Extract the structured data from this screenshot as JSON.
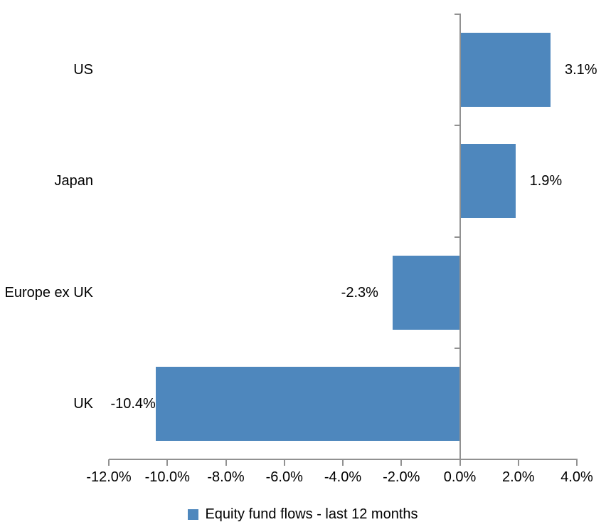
{
  "chart_data": {
    "type": "bar",
    "orientation": "horizontal",
    "title": "",
    "categories": [
      "US",
      "Japan",
      "Europe ex UK",
      "UK"
    ],
    "series": [
      {
        "name": "Equity fund flows - last 12 months",
        "values": [
          3.1,
          1.9,
          -2.3,
          -10.4
        ]
      }
    ],
    "data_labels": [
      "3.1%",
      "1.9%",
      "-2.3%",
      "-10.4%"
    ],
    "x_axis": {
      "min": -12,
      "max": 4,
      "step": 2,
      "tick_values": [
        -12,
        -10,
        -8,
        -6,
        -4,
        -2,
        0,
        2,
        4
      ],
      "tick_labels": [
        "-12.0%",
        "-10.0%",
        "-8.0%",
        "-6.0%",
        "-4.0%",
        "-2.0%",
        "0.0%",
        "2.0%",
        "4.0%"
      ]
    },
    "y_axis": {
      "crosses_at": 0
    },
    "grid": false,
    "legend": {
      "position": "bottom",
      "entries": [
        {
          "label": "Equity fund flows - last 12 months",
          "color": "#4E87BD"
        }
      ]
    },
    "colors": {
      "bar": "#4E87BD",
      "axis": "#919191",
      "text": "#000000",
      "background": "#FFFFFF"
    }
  }
}
